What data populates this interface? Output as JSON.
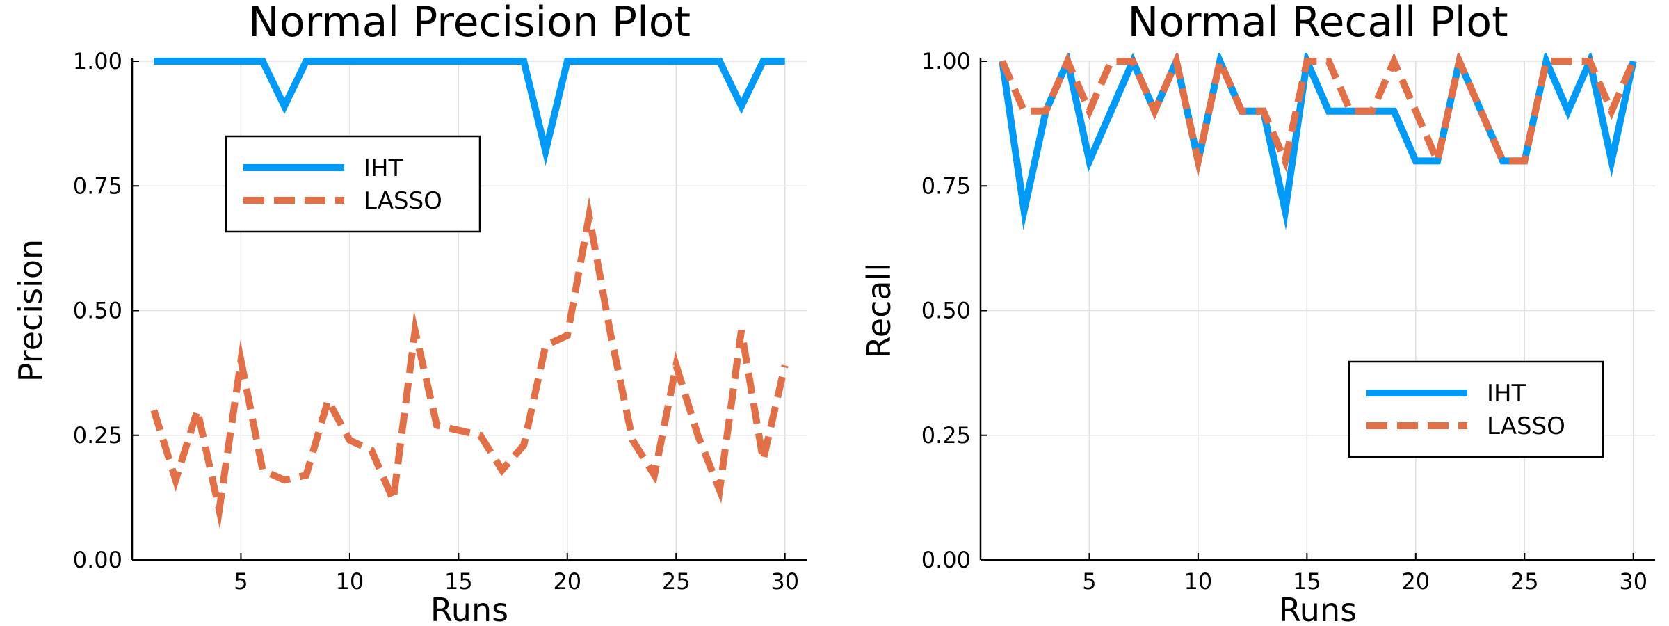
{
  "colors": {
    "iht": "#009af9",
    "lasso": "#e26f46",
    "grid": "#e0e0e0",
    "axis": "#000000"
  },
  "chart_data": [
    {
      "type": "line",
      "title": "Normal Precision Plot",
      "xlabel": "Runs",
      "ylabel": "Precision",
      "xlim": [
        0,
        31
      ],
      "ylim": [
        0,
        1
      ],
      "xticks": [
        5,
        10,
        15,
        20,
        25,
        30
      ],
      "yticks": [
        0.0,
        0.25,
        0.5,
        0.75,
        1.0
      ],
      "ytick_labels": [
        "0.00",
        "0.25",
        "0.50",
        "0.75",
        "1.00"
      ],
      "grid": true,
      "legend_placement": "top-left",
      "x": [
        1,
        2,
        3,
        4,
        5,
        6,
        7,
        8,
        9,
        10,
        11,
        12,
        13,
        14,
        15,
        16,
        17,
        18,
        19,
        20,
        21,
        22,
        23,
        24,
        25,
        26,
        27,
        28,
        29,
        30
      ],
      "series": [
        {
          "name": "IHT",
          "style": "solid",
          "values": [
            1,
            1,
            1,
            1,
            1,
            1,
            0.91,
            1,
            1,
            1,
            1,
            1,
            1,
            1,
            1,
            1,
            1,
            1,
            0.82,
            1,
            1,
            1,
            1,
            1,
            1,
            1,
            1,
            0.91,
            1,
            1
          ]
        },
        {
          "name": "LASSO",
          "style": "dashed",
          "values": [
            0.3,
            0.16,
            0.3,
            0.1,
            0.4,
            0.18,
            0.16,
            0.17,
            0.32,
            0.24,
            0.22,
            0.12,
            0.46,
            0.27,
            0.26,
            0.25,
            0.18,
            0.23,
            0.43,
            0.45,
            0.69,
            0.45,
            0.24,
            0.17,
            0.39,
            0.25,
            0.14,
            0.46,
            0.2,
            0.39
          ]
        }
      ]
    },
    {
      "type": "line",
      "title": "Normal Recall Plot",
      "xlabel": "Runs",
      "ylabel": "Recall",
      "xlim": [
        0,
        31
      ],
      "ylim": [
        0,
        1
      ],
      "xticks": [
        5,
        10,
        15,
        20,
        25,
        30
      ],
      "yticks": [
        0.0,
        0.25,
        0.5,
        0.75,
        1.0
      ],
      "ytick_labels": [
        "0.00",
        "0.25",
        "0.50",
        "0.75",
        "1.00"
      ],
      "grid": true,
      "legend_placement": "bottom-right",
      "x": [
        1,
        2,
        3,
        4,
        5,
        6,
        7,
        8,
        9,
        10,
        11,
        12,
        13,
        14,
        15,
        16,
        17,
        18,
        19,
        20,
        21,
        22,
        23,
        24,
        25,
        26,
        27,
        28,
        29,
        30
      ],
      "series": [
        {
          "name": "IHT",
          "style": "solid",
          "values": [
            1.0,
            0.7,
            0.9,
            1.0,
            0.8,
            0.9,
            1.0,
            0.9,
            1.0,
            0.8,
            1.0,
            0.9,
            0.9,
            0.7,
            1.0,
            0.9,
            0.9,
            0.9,
            0.9,
            0.8,
            0.8,
            1.0,
            0.9,
            0.8,
            0.8,
            1.0,
            0.9,
            1.0,
            0.8,
            1.0
          ]
        },
        {
          "name": "LASSO",
          "style": "dashed",
          "values": [
            1.0,
            0.9,
            0.9,
            1.0,
            0.9,
            1.0,
            1.0,
            0.9,
            1.0,
            0.8,
            1.0,
            0.9,
            0.9,
            0.8,
            1.0,
            1.0,
            0.9,
            0.9,
            1.0,
            0.9,
            0.8,
            1.0,
            0.9,
            0.8,
            0.8,
            1.0,
            1.0,
            1.0,
            0.9,
            1.0
          ]
        }
      ]
    }
  ]
}
